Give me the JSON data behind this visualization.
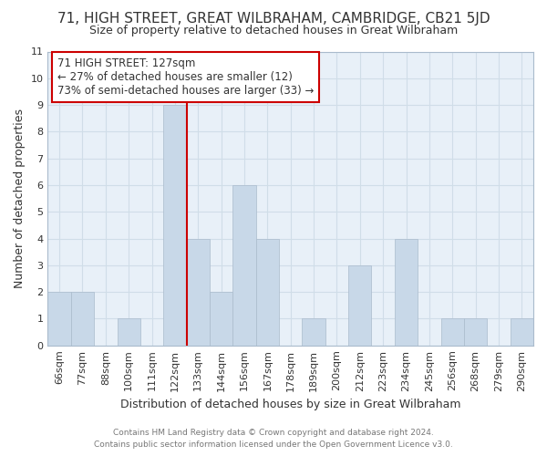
{
  "title": "71, HIGH STREET, GREAT WILBRAHAM, CAMBRIDGE, CB21 5JD",
  "subtitle": "Size of property relative to detached houses in Great Wilbraham",
  "xlabel": "Distribution of detached houses by size in Great Wilbraham",
  "ylabel": "Number of detached properties",
  "footer_line1": "Contains HM Land Registry data © Crown copyright and database right 2024.",
  "footer_line2": "Contains public sector information licensed under the Open Government Licence v3.0.",
  "bin_labels": [
    "66sqm",
    "77sqm",
    "88sqm",
    "100sqm",
    "111sqm",
    "122sqm",
    "133sqm",
    "144sqm",
    "156sqm",
    "167sqm",
    "178sqm",
    "189sqm",
    "200sqm",
    "212sqm",
    "223sqm",
    "234sqm",
    "245sqm",
    "256sqm",
    "268sqm",
    "279sqm",
    "290sqm"
  ],
  "bar_heights": [
    2,
    2,
    0,
    1,
    0,
    9,
    4,
    2,
    6,
    4,
    0,
    1,
    0,
    3,
    0,
    4,
    0,
    1,
    1,
    0,
    1
  ],
  "bar_color": "#c8d8e8",
  "bar_edge_color": "#aabbcc",
  "highlight_bar_index": 5,
  "highlight_line_color": "#cc0000",
  "annotation_text": "71 HIGH STREET: 127sqm\n← 27% of detached houses are smaller (12)\n73% of semi-detached houses are larger (33) →",
  "annotation_box_color": "#ffffff",
  "annotation_box_edge_color": "#cc0000",
  "ylim": [
    0,
    11
  ],
  "yticks": [
    0,
    1,
    2,
    3,
    4,
    5,
    6,
    7,
    8,
    9,
    10,
    11
  ],
  "grid_color": "#d0dde8",
  "background_color": "#ffffff",
  "plot_bg_color": "#e8f0f8",
  "title_fontsize": 11,
  "subtitle_fontsize": 9,
  "axis_label_fontsize": 9,
  "tick_fontsize": 8,
  "annotation_fontsize": 8.5
}
